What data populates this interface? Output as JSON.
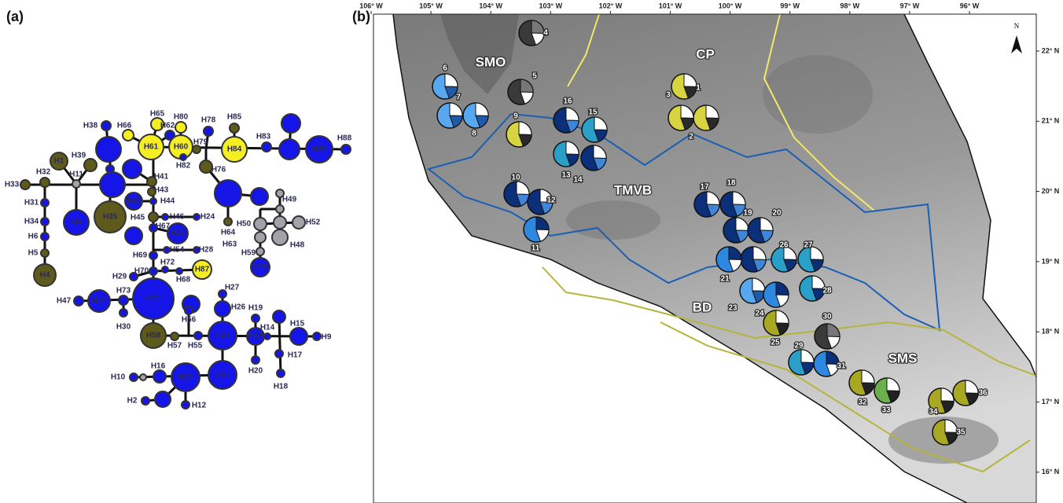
{
  "panels": [
    "(a)",
    "(b)"
  ],
  "network": {
    "nodes": [
      "H1",
      "H39",
      "H32",
      "H11",
      "H33",
      "H31",
      "H34",
      "H6",
      "H5",
      "H4",
      "H8",
      "H38",
      "H66",
      "H65",
      "H62",
      "H80",
      "H78",
      "H85",
      "H83",
      "H89",
      "H88",
      "H79",
      "H84",
      "H61",
      "H60",
      "H82",
      "H41",
      "H76",
      "H64",
      "H43",
      "H44",
      "H42",
      "H35",
      "H45",
      "H46",
      "H24",
      "H67",
      "H23",
      "H54",
      "H28",
      "H69",
      "H72",
      "H70",
      "H68",
      "H87",
      "H29",
      "H71",
      "H73",
      "H74",
      "H47",
      "H30",
      "H58",
      "H57",
      "H56",
      "H55",
      "H27",
      "H26",
      "H22",
      "H21",
      "H19",
      "H25",
      "H14",
      "H15",
      "H9",
      "H17",
      "H20",
      "H18",
      "H13",
      "H16",
      "H10",
      "H2",
      "H12",
      "H49",
      "H52",
      "H50",
      "H48",
      "H63",
      "H59",
      "H75"
    ]
  },
  "map": {
    "longitudes": [
      "106° W",
      "105° W",
      "104° W",
      "103° W",
      "102° W",
      "101° W",
      "100° W",
      "99° W",
      "98° W",
      "97° W",
      "96° W"
    ],
    "latitudes": [
      "22° N",
      "21° N",
      "20° N",
      "19° N",
      "18° N",
      "17° N",
      "16° N"
    ],
    "regions": [
      "SMO",
      "CP",
      "TMVB",
      "BD",
      "SMS"
    ],
    "north": "N",
    "sites": [
      "1",
      "2",
      "3",
      "4",
      "5",
      "6",
      "7",
      "8",
      "9",
      "10",
      "11",
      "12",
      "13",
      "14",
      "15",
      "16",
      "17",
      "18",
      "19",
      "20",
      "21",
      "23",
      "24",
      "25",
      "26",
      "27",
      "28",
      "29",
      "30",
      "31",
      "32",
      "33",
      "34",
      "35",
      "36"
    ]
  }
}
